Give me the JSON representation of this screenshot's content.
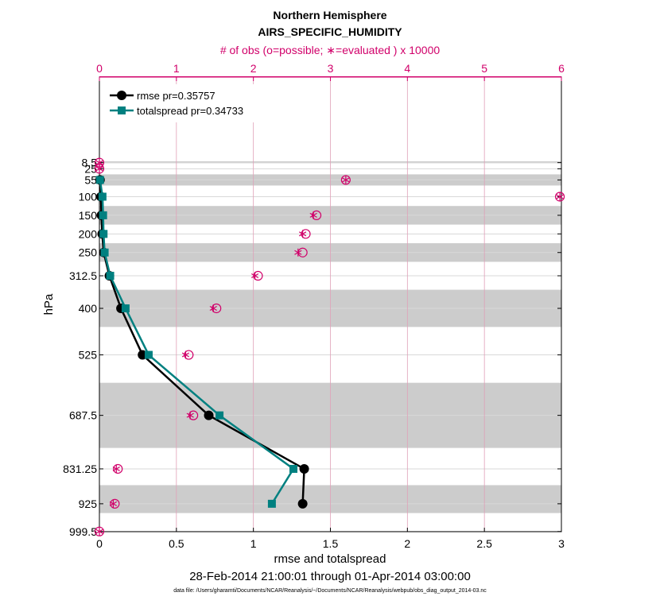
{
  "chart_data": {
    "type": "line",
    "title": "Northern Hemisphere",
    "subtitle": "AIRS_SPECIFIC_HUMIDITY",
    "top_axis_label": "# of obs (o=possible; ∗=evaluated ) x 10000",
    "xlabel": "rmse and totalspread",
    "ylabel": "hPa",
    "date_range": "28-Feb-2014 21:00:01 through 01-Apr-2014 03:00:00",
    "data_file": "data file: /Users/gharamti/Documents/NCAR/Reanalysis/~/Documents/NCAR/Reanalysis/webpub/obs_diag_output_2014-03.nc",
    "xlim": [
      0,
      3
    ],
    "x_ticks": [
      "0",
      "0.5",
      "1",
      "1.5",
      "2",
      "2.5",
      "3"
    ],
    "top_xlim": [
      0,
      6
    ],
    "top_ticks": [
      "0",
      "1",
      "2",
      "3",
      "4",
      "5",
      "6"
    ],
    "levels": [
      8.5,
      25,
      55,
      100,
      150,
      200,
      250,
      312.5,
      400,
      525,
      687.5,
      831.25,
      925,
      999.5
    ],
    "level_labels": [
      "8.5",
      "25",
      "55",
      "100",
      "150",
      "200",
      "250",
      "312.5",
      "400",
      "525",
      "687.5",
      "831.25",
      "925",
      "999.5"
    ],
    "shaded_layers": [
      [
        5,
        10
      ],
      [
        40,
        70
      ],
      [
        125,
        175
      ],
      [
        225,
        275
      ],
      [
        350,
        450
      ],
      [
        600,
        775
      ],
      [
        875,
        950
      ]
    ],
    "legend_position": "top-left",
    "series": [
      {
        "name": "rmse pr=0.35757",
        "color": "#000000",
        "marker": "circle",
        "values": [
          null,
          null,
          0.004,
          0.01,
          0.013,
          0.018,
          0.028,
          0.065,
          0.14,
          0.28,
          0.71,
          1.33,
          1.32,
          null
        ]
      },
      {
        "name": "totalspread pr=0.34733",
        "color": "#008080",
        "marker": "square",
        "values": [
          null,
          null,
          0.004,
          0.02,
          0.024,
          0.027,
          0.034,
          0.07,
          0.17,
          0.32,
          0.78,
          1.26,
          1.12,
          null
        ]
      }
    ],
    "obs_possible": [
      0.0,
      0.0,
      3.2,
      5.98,
      2.82,
      2.68,
      2.64,
      2.06,
      1.52,
      1.16,
      1.22,
      0.24,
      0.2,
      0.0
    ],
    "obs_evaluated": [
      0.0,
      0.0,
      3.2,
      5.98,
      2.78,
      2.64,
      2.58,
      2.02,
      1.48,
      1.12,
      1.18,
      0.22,
      0.18,
      0.0
    ]
  }
}
